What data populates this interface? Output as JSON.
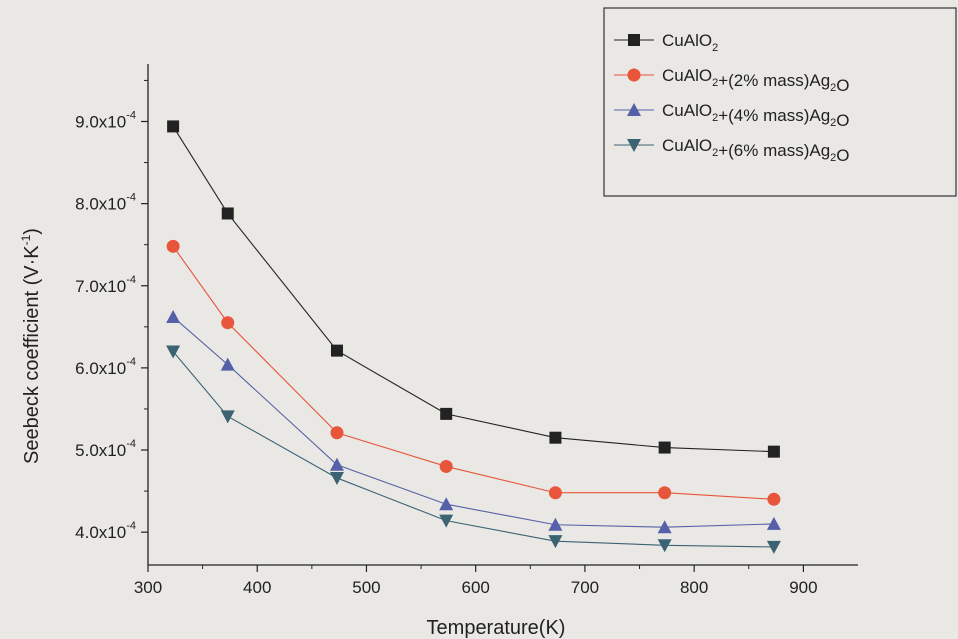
{
  "chart_data": {
    "type": "line",
    "xlabel": "Temperature(K)",
    "ylabel": "Seebeck coefficient (V·K",
    "ylabel_sup": "-1",
    "ylabel_close": ")",
    "xlim": [
      300,
      950
    ],
    "ylim": [
      0.00036,
      0.00097
    ],
    "xticks": [
      300,
      400,
      500,
      600,
      700,
      800,
      900
    ],
    "xtick_labels": [
      "300",
      "400",
      "500",
      "600",
      "700",
      "800",
      "900"
    ],
    "yticks": [
      0.0004,
      0.0005,
      0.0006,
      0.0007,
      0.0008,
      0.0009
    ],
    "ytick_labels": [
      {
        "mantissa": "4.0x10",
        "exp": "-4"
      },
      {
        "mantissa": "5.0x10",
        "exp": "-4"
      },
      {
        "mantissa": "6.0x10",
        "exp": "-4"
      },
      {
        "mantissa": "7.0x10",
        "exp": "-4"
      },
      {
        "mantissa": "8.0x10",
        "exp": "-4"
      },
      {
        "mantissa": "9.0x10",
        "exp": "-4"
      }
    ],
    "legend_position": "top-right",
    "grid": false,
    "x": [
      323,
      373,
      473,
      573,
      673,
      773,
      873
    ],
    "series": [
      {
        "name": "CuAlO2",
        "legend_parts": [
          {
            "t": "CuAlO"
          },
          {
            "t": "2",
            "sub": true
          }
        ],
        "marker": "square",
        "color": "#222222",
        "values": [
          0.000894,
          0.000788,
          0.000621,
          0.000544,
          0.000515,
          0.000503,
          0.000498
        ]
      },
      {
        "name": "CuAlO2+(2% mass)Ag2O",
        "legend_parts": [
          {
            "t": "CuAlO"
          },
          {
            "t": "2",
            "sub": true
          },
          {
            "t": "+(2% mass)Ag"
          },
          {
            "t": "2",
            "sub": true
          },
          {
            "t": "O"
          }
        ],
        "marker": "circle",
        "color": "#e8553a",
        "values": [
          0.000748,
          0.000655,
          0.000521,
          0.00048,
          0.000448,
          0.000448,
          0.00044
        ]
      },
      {
        "name": "CuAlO2+(4% mass)Ag2O",
        "legend_parts": [
          {
            "t": "CuAlO"
          },
          {
            "t": "2",
            "sub": true
          },
          {
            "t": "+(4% mass)Ag"
          },
          {
            "t": "2",
            "sub": true
          },
          {
            "t": "O"
          }
        ],
        "marker": "triangle-up",
        "color": "#5560a8",
        "values": [
          0.000662,
          0.000604,
          0.000482,
          0.000434,
          0.000409,
          0.000406,
          0.00041
        ]
      },
      {
        "name": "CuAlO2+(6% mass)Ag2O",
        "legend_parts": [
          {
            "t": "CuAlO"
          },
          {
            "t": "2",
            "sub": true
          },
          {
            "t": "+(6% mass)Ag"
          },
          {
            "t": "2",
            "sub": true
          },
          {
            "t": "O"
          }
        ],
        "marker": "triangle-down",
        "color": "#3b6373",
        "values": [
          0.00062,
          0.000541,
          0.000466,
          0.000414,
          0.000389,
          0.000384,
          0.000382
        ]
      }
    ]
  }
}
